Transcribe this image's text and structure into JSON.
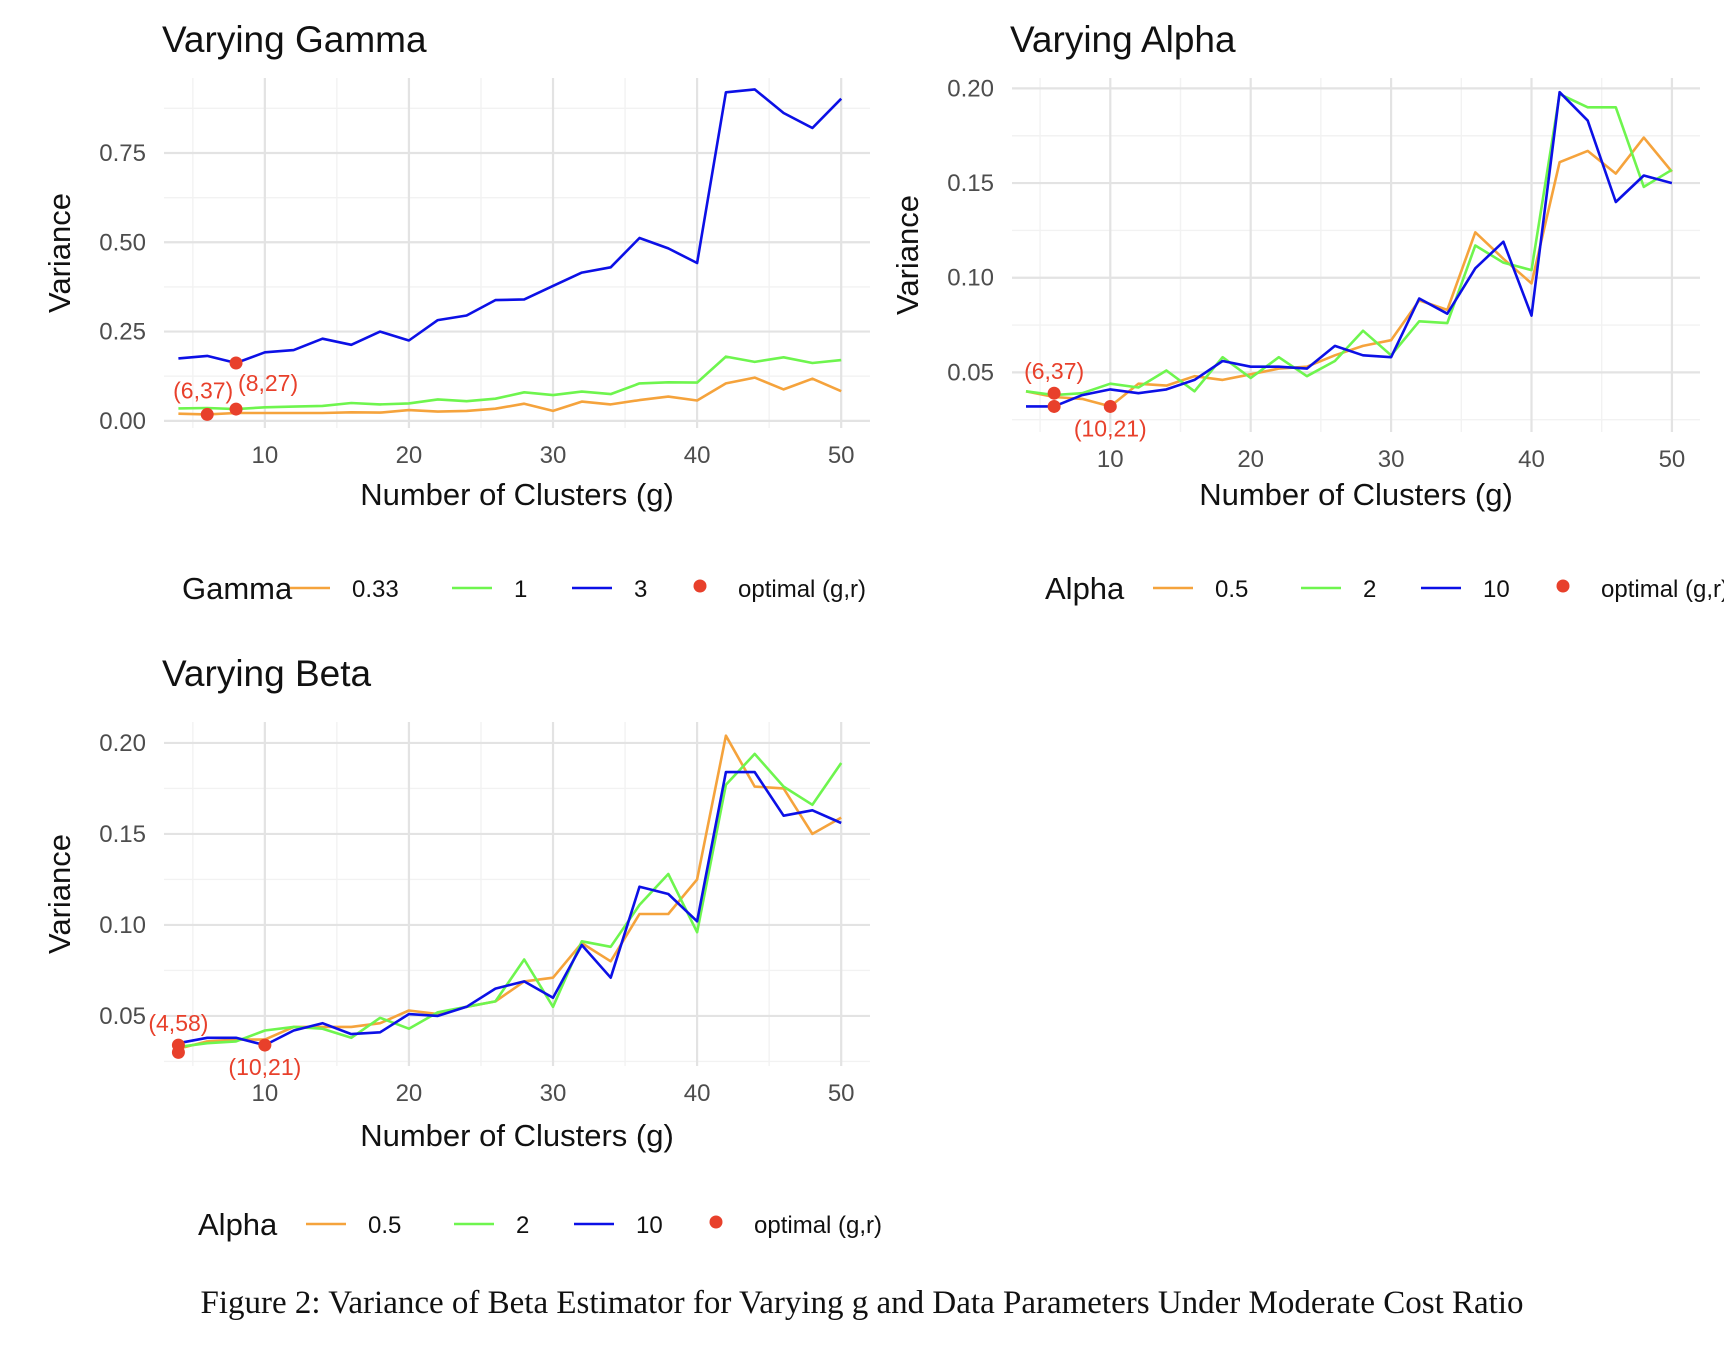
{
  "caption": "Figure 2: Variance of Beta Estimator for Varying g and Data Parameters Under Moderate Cost Ratio",
  "chart_data": [
    {
      "type": "line",
      "title": "Varying Gamma",
      "xlabel": "Number of Clusters (g)",
      "ylabel": "Variance",
      "xlim": [
        3,
        52
      ],
      "ylim": [
        -0.02,
        0.96
      ],
      "xticks": [
        10,
        20,
        30,
        40,
        50
      ],
      "yticks": [
        0.0,
        0.25,
        0.5,
        0.75
      ],
      "ytick_labels": [
        "0.00",
        "0.25",
        "0.50",
        "0.75"
      ],
      "grid": true,
      "legend_title": "Gamma",
      "legend_position": "bottom",
      "x": [
        4,
        6,
        8,
        10,
        12,
        14,
        16,
        18,
        20,
        22,
        24,
        26,
        28,
        30,
        32,
        34,
        36,
        38,
        40,
        42,
        44,
        46,
        48,
        50
      ],
      "series": [
        {
          "name": "0.33",
          "color": "#F5A33C",
          "values": [
            0.02,
            0.018,
            0.022,
            0.022,
            0.022,
            0.022,
            0.024,
            0.023,
            0.03,
            0.026,
            0.028,
            0.034,
            0.048,
            0.028,
            0.054,
            0.046,
            0.058,
            0.068,
            0.057,
            0.105,
            0.121,
            0.088,
            0.118,
            0.083
          ]
        },
        {
          "name": "1",
          "color": "#6EF54E",
          "values": [
            0.035,
            0.036,
            0.033,
            0.038,
            0.04,
            0.042,
            0.05,
            0.046,
            0.049,
            0.06,
            0.055,
            0.062,
            0.08,
            0.072,
            0.082,
            0.075,
            0.105,
            0.108,
            0.107,
            0.18,
            0.165,
            0.178,
            0.162,
            0.17
          ]
        },
        {
          "name": "3",
          "color": "#0C10E6",
          "values": [
            0.175,
            0.182,
            0.162,
            0.192,
            0.198,
            0.23,
            0.213,
            0.25,
            0.225,
            0.282,
            0.295,
            0.338,
            0.34,
            0.378,
            0.415,
            0.43,
            0.512,
            0.483,
            0.442,
            0.92,
            0.928,
            0.862,
            0.82,
            0.902
          ]
        }
      ],
      "optimal_label": "optimal (g,r)",
      "optimal_color": "#E8402B",
      "optimal_points": [
        {
          "x": 6,
          "y": 0.018,
          "label": "(6,37)",
          "anchor": "end",
          "dy": -16
        },
        {
          "x": 8,
          "y": 0.033,
          "label": "",
          "anchor": "middle",
          "dy": 0
        },
        {
          "x": 8,
          "y": 0.162,
          "label": "(8,27)",
          "anchor": "start",
          "dy": 28
        }
      ]
    },
    {
      "type": "line",
      "title": "Varying Alpha",
      "xlabel": "Number of Clusters (g)",
      "ylabel": "Variance",
      "xlim": [
        3,
        52
      ],
      "ylim": [
        0.0185,
        0.2055
      ],
      "xticks": [
        10,
        20,
        30,
        40,
        50
      ],
      "yticks": [
        0.05,
        0.1,
        0.15,
        0.2
      ],
      "ytick_labels": [
        "0.05",
        "0.10",
        "0.15",
        "0.20"
      ],
      "grid": true,
      "legend_title": "Alpha",
      "legend_position": "bottom",
      "x": [
        4,
        6,
        8,
        10,
        12,
        14,
        16,
        18,
        20,
        22,
        24,
        26,
        28,
        30,
        32,
        34,
        36,
        38,
        40,
        42,
        44,
        46,
        48,
        50
      ],
      "series": [
        {
          "name": "0.5",
          "color": "#F5A33C",
          "values": [
            0.04,
            0.037,
            0.036,
            0.032,
            0.044,
            0.043,
            0.048,
            0.046,
            0.049,
            0.052,
            0.053,
            0.059,
            0.064,
            0.067,
            0.088,
            0.083,
            0.124,
            0.11,
            0.097,
            0.161,
            0.167,
            0.155,
            0.174,
            0.156
          ]
        },
        {
          "name": "2",
          "color": "#6EF54E",
          "values": [
            0.04,
            0.038,
            0.039,
            0.044,
            0.042,
            0.051,
            0.04,
            0.058,
            0.047,
            0.058,
            0.048,
            0.056,
            0.072,
            0.059,
            0.077,
            0.076,
            0.117,
            0.108,
            0.104,
            0.197,
            0.19,
            0.19,
            0.148,
            0.157
          ]
        },
        {
          "name": "10",
          "color": "#0C10E6",
          "values": [
            0.032,
            0.032,
            0.038,
            0.041,
            0.039,
            0.041,
            0.046,
            0.056,
            0.053,
            0.053,
            0.052,
            0.064,
            0.059,
            0.058,
            0.089,
            0.081,
            0.105,
            0.119,
            0.08,
            0.198,
            0.183,
            0.14,
            0.154,
            0.15
          ]
        }
      ],
      "optimal_label": "optimal (g,r)",
      "optimal_color": "#E8402B",
      "optimal_points": [
        {
          "x": 6,
          "y": 0.039,
          "label": "(6,37)",
          "anchor": "middle",
          "dy": -14
        },
        {
          "x": 6,
          "y": 0.032,
          "label": "",
          "anchor": "middle",
          "dy": 0
        },
        {
          "x": 10,
          "y": 0.032,
          "label": "(10,21)",
          "anchor": "middle",
          "dy": 30
        }
      ]
    },
    {
      "type": "line",
      "title": "Varying Beta",
      "xlabel": "Number of Clusters (g)",
      "ylabel": "Variance",
      "xlim": [
        3,
        52
      ],
      "ylim": [
        0.0225,
        0.2115
      ],
      "xticks": [
        10,
        20,
        30,
        40,
        50
      ],
      "yticks": [
        0.05,
        0.1,
        0.15,
        0.2
      ],
      "ytick_labels": [
        "0.05",
        "0.10",
        "0.15",
        "0.20"
      ],
      "grid": true,
      "legend_title": "Alpha",
      "legend_position": "bottom",
      "x": [
        4,
        6,
        8,
        10,
        12,
        14,
        16,
        18,
        20,
        22,
        24,
        26,
        28,
        30,
        32,
        34,
        36,
        38,
        40,
        42,
        44,
        46,
        48,
        50
      ],
      "series": [
        {
          "name": "0.5",
          "color": "#F5A33C",
          "values": [
            0.032,
            0.036,
            0.037,
            0.037,
            0.044,
            0.044,
            0.044,
            0.046,
            0.053,
            0.051,
            0.055,
            0.058,
            0.069,
            0.071,
            0.09,
            0.08,
            0.106,
            0.106,
            0.125,
            0.204,
            0.176,
            0.175,
            0.15,
            0.159
          ]
        },
        {
          "name": "2",
          "color": "#6EF54E",
          "values": [
            0.033,
            0.035,
            0.036,
            0.042,
            0.044,
            0.043,
            0.038,
            0.049,
            0.043,
            0.052,
            0.055,
            0.058,
            0.081,
            0.055,
            0.091,
            0.088,
            0.111,
            0.128,
            0.096,
            0.177,
            0.194,
            0.176,
            0.166,
            0.189
          ]
        },
        {
          "name": "10",
          "color": "#0C10E6",
          "values": [
            0.035,
            0.038,
            0.038,
            0.034,
            0.042,
            0.046,
            0.04,
            0.041,
            0.051,
            0.05,
            0.055,
            0.065,
            0.069,
            0.06,
            0.089,
            0.071,
            0.121,
            0.117,
            0.102,
            0.184,
            0.184,
            0.16,
            0.163,
            0.156
          ]
        }
      ],
      "optimal_label": "optimal (g,r)",
      "optimal_color": "#E8402B",
      "optimal_points": [
        {
          "x": 4,
          "y": 0.034,
          "label": "(4,58)",
          "anchor": "middle",
          "dy": -14
        },
        {
          "x": 4,
          "y": 0.03,
          "label": "",
          "anchor": "middle",
          "dy": 0
        },
        {
          "x": 10,
          "y": 0.034,
          "label": "(10,21)",
          "anchor": "middle",
          "dy": 30
        }
      ]
    }
  ]
}
